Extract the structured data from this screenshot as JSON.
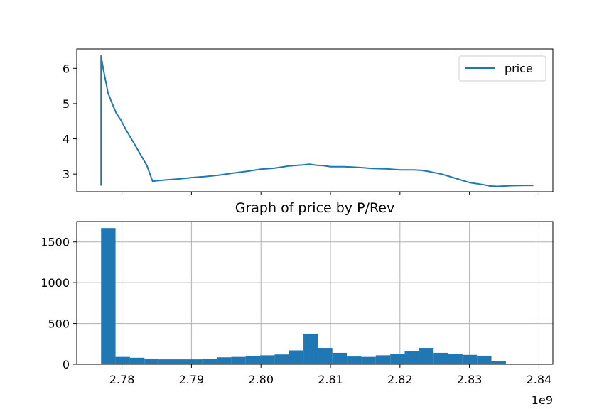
{
  "chart_data": [
    {
      "type": "line",
      "title": "",
      "xlabel": "",
      "ylabel": "",
      "xlim": [
        2773500000,
        2842000000
      ],
      "ylim": [
        2.5,
        6.55
      ],
      "grid": false,
      "legend_position": "top-right",
      "y_ticks": [
        3,
        4,
        5,
        6
      ],
      "y_tick_labels": [
        "3",
        "4",
        "5",
        "6"
      ],
      "x_tick_marks": [
        2780000000,
        2790000000,
        2800000000,
        2810000000,
        2820000000,
        2830000000,
        2840000000
      ],
      "color": "#1f77b4",
      "series": [
        {
          "name": "price",
          "points": [
            [
              2777000000,
              2.67
            ],
            [
              2777000000,
              6.35
            ],
            [
              2777300000,
              6.0
            ],
            [
              2777700000,
              5.6
            ],
            [
              2778000000,
              5.3
            ],
            [
              2778600000,
              5.0
            ],
            [
              2779200000,
              4.72
            ],
            [
              2779800000,
              4.55
            ],
            [
              2780600000,
              4.25
            ],
            [
              2781600000,
              3.92
            ],
            [
              2782600000,
              3.58
            ],
            [
              2783600000,
              3.24
            ],
            [
              2784400000,
              2.8
            ],
            [
              2786000000,
              2.83
            ],
            [
              2788000000,
              2.86
            ],
            [
              2790000000,
              2.9
            ],
            [
              2792000000,
              2.93
            ],
            [
              2794000000,
              2.97
            ],
            [
              2796000000,
              3.03
            ],
            [
              2798000000,
              3.08
            ],
            [
              2800000000,
              3.14
            ],
            [
              2802000000,
              3.17
            ],
            [
              2804000000,
              3.23
            ],
            [
              2806000000,
              3.26
            ],
            [
              2807000000,
              3.28
            ],
            [
              2808000000,
              3.25
            ],
            [
              2809000000,
              3.24
            ],
            [
              2810000000,
              3.21
            ],
            [
              2812000000,
              3.21
            ],
            [
              2814000000,
              3.19
            ],
            [
              2816000000,
              3.16
            ],
            [
              2818000000,
              3.15
            ],
            [
              2820000000,
              3.12
            ],
            [
              2821000000,
              3.12
            ],
            [
              2822000000,
              3.12
            ],
            [
              2823000000,
              3.11
            ],
            [
              2824000000,
              3.08
            ],
            [
              2826000000,
              3.0
            ],
            [
              2828000000,
              2.88
            ],
            [
              2830000000,
              2.76
            ],
            [
              2832000000,
              2.7
            ],
            [
              2833000000,
              2.66
            ],
            [
              2834000000,
              2.65
            ],
            [
              2836000000,
              2.67
            ],
            [
              2838000000,
              2.68
            ],
            [
              2839200000,
              2.68
            ]
          ]
        }
      ]
    },
    {
      "type": "bar",
      "subtype": "histogram",
      "title": "Graph of price by P/Rev",
      "xlabel": "",
      "ylabel": "",
      "xlim": [
        2773500000,
        2842000000
      ],
      "ylim": [
        0,
        1750
      ],
      "grid": true,
      "x_offset_label": "1e9",
      "x_ticks": [
        2780000000,
        2790000000,
        2800000000,
        2810000000,
        2820000000,
        2830000000,
        2840000000
      ],
      "x_tick_labels": [
        "2.78",
        "2.79",
        "2.80",
        "2.81",
        "2.82",
        "2.83",
        "2.84"
      ],
      "y_ticks": [
        0,
        500,
        1000,
        1500
      ],
      "y_tick_labels": [
        "0",
        "500",
        "1000",
        "1500"
      ],
      "color": "#1f77b4",
      "bin_start": 2777000000,
      "bin_width": 2080000,
      "values": [
        1670,
        90,
        80,
        70,
        60,
        60,
        60,
        70,
        85,
        90,
        100,
        110,
        120,
        170,
        375,
        200,
        140,
        95,
        90,
        110,
        130,
        160,
        200,
        140,
        130,
        115,
        105,
        35,
        0,
        0,
        0
      ]
    }
  ]
}
